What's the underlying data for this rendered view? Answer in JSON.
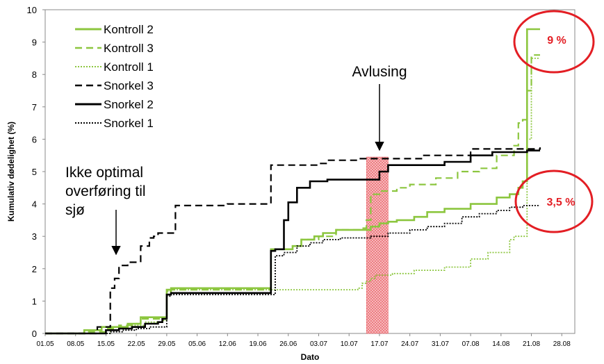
{
  "chart_data": {
    "type": "line",
    "title": "",
    "xlabel": "Dato",
    "ylabel": "Kumulativ dødelighet (%)",
    "ylim": [
      0,
      10
    ],
    "yticks": [
      "0",
      "1",
      "2",
      "3",
      "4",
      "5",
      "6",
      "7",
      "8",
      "9",
      "10"
    ],
    "x_tick_labels": [
      "01.05",
      "08.05",
      "15.05",
      "22.05",
      "29.05",
      "05.06",
      "12.06",
      "19.06",
      "26.06",
      "03.07",
      "10.07",
      "17.07",
      "24.07",
      "31.07",
      "07.08",
      "14.08",
      "21.08",
      "28.08"
    ],
    "x_range": [
      "01.05",
      "31.08"
    ],
    "grid": false,
    "legend_position": "top-left",
    "series": [
      {
        "name": "Kontroll 2",
        "color": "#8cc63f",
        "dash": "solid",
        "x": [
          "01.05",
          "08.05",
          "10.05",
          "14.05",
          "17.05",
          "20.05",
          "23.05",
          "27.05",
          "29.05",
          "30.05",
          "22.06",
          "27.06",
          "29.06",
          "02.07",
          "04.07",
          "07.07",
          "10.07",
          "13.07",
          "15.07",
          "17.07",
          "19.07",
          "21.07",
          "25.07",
          "28.07",
          "01.08",
          "07.08",
          "13.08",
          "16.08",
          "18.08",
          "19.08",
          "20.08",
          "23.08"
        ],
        "values": [
          0,
          0,
          0.1,
          0.2,
          0.2,
          0.3,
          0.5,
          0.5,
          1.35,
          1.4,
          2.6,
          2.7,
          2.9,
          3.0,
          3.1,
          3.2,
          3.2,
          3.2,
          3.3,
          3.4,
          3.45,
          3.5,
          3.6,
          3.75,
          3.85,
          4.0,
          4.2,
          4.3,
          4.5,
          4.7,
          9.4,
          9.4
        ]
      },
      {
        "name": "Kontroll 3",
        "color": "#8cc63f",
        "dash": "dash",
        "x": [
          "01.05",
          "08.05",
          "10.05",
          "15.05",
          "18.05",
          "21.05",
          "23.05",
          "27.05",
          "29.05",
          "30.05",
          "22.06",
          "27.06",
          "29.06",
          "03.07",
          "07.07",
          "13.07",
          "14.07",
          "15.07",
          "17.07",
          "21.07",
          "24.07",
          "30.07",
          "04.08",
          "09.08",
          "13.08",
          "17.08",
          "18.08",
          "19.08",
          "20.08",
          "21.08",
          "23.08"
        ],
        "values": [
          0,
          0,
          0.05,
          0.15,
          0.25,
          0.3,
          0.45,
          0.45,
          1.3,
          1.35,
          2.6,
          2.7,
          2.9,
          3.0,
          3.2,
          3.25,
          3.5,
          4.3,
          4.4,
          4.5,
          4.6,
          4.8,
          5.0,
          5.1,
          5.5,
          5.8,
          6.5,
          6.6,
          7.5,
          8.6,
          8.6
        ]
      },
      {
        "name": "Kontroll 1",
        "color": "#8cc63f",
        "dash": "dot",
        "x": [
          "01.05",
          "12.05",
          "16.05",
          "20.05",
          "24.05",
          "28.05",
          "29.05",
          "30.05",
          "22.06",
          "12.07",
          "13.07",
          "14.07",
          "15.07",
          "16.07",
          "20.07",
          "25.07",
          "01.08",
          "07.08",
          "11.08",
          "14.08",
          "16.08",
          "17.08",
          "19.08",
          "20.08",
          "21.08",
          "23.08"
        ],
        "values": [
          0,
          0,
          0.2,
          0.25,
          0.35,
          0.4,
          1.3,
          1.35,
          1.35,
          1.4,
          1.55,
          1.6,
          1.7,
          1.8,
          1.85,
          1.95,
          2.05,
          2.3,
          2.5,
          2.5,
          2.9,
          3.0,
          3.0,
          6.0,
          8.5,
          8.5
        ]
      },
      {
        "name": "Snorkel 3",
        "color": "#000000",
        "dash": "dash",
        "x": [
          "01.05",
          "08.05",
          "13.05",
          "15.05",
          "16.05",
          "17.05",
          "18.05",
          "20.05",
          "23.05",
          "25.05",
          "26.05",
          "27.05",
          "29.05",
          "31.05",
          "08.06",
          "12.06",
          "19.06",
          "21.06",
          "22.06",
          "03.07",
          "05.07",
          "12.07",
          "27.07",
          "07.08",
          "23.08"
        ],
        "values": [
          0,
          0,
          0.2,
          0.2,
          1.4,
          1.7,
          2.1,
          2.2,
          2.7,
          2.95,
          3.0,
          3.1,
          3.1,
          3.95,
          3.95,
          4.0,
          4.0,
          4.0,
          5.2,
          5.25,
          5.35,
          5.4,
          5.5,
          5.7,
          5.75
        ]
      },
      {
        "name": "Snorkel 2",
        "color": "#000000",
        "dash": "solid",
        "x": [
          "01.05",
          "08.05",
          "15.05",
          "18.05",
          "21.05",
          "24.05",
          "27.05",
          "28.05",
          "29.05",
          "30.05",
          "22.06",
          "23.06",
          "25.06",
          "26.06",
          "27.06",
          "28.06",
          "01.07",
          "05.07",
          "15.07",
          "17.07",
          "19.07",
          "25.07",
          "01.08",
          "07.08",
          "12.08",
          "16.08",
          "20.08",
          "23.08"
        ],
        "values": [
          0,
          0,
          0.1,
          0.15,
          0.2,
          0.3,
          0.35,
          0.45,
          1.2,
          1.25,
          2.55,
          2.6,
          3.5,
          4.05,
          4.05,
          4.5,
          4.7,
          4.75,
          4.75,
          5.0,
          5.2,
          5.2,
          5.3,
          5.5,
          5.6,
          5.6,
          5.65,
          5.65
        ]
      },
      {
        "name": "Snorkel 1",
        "color": "#000000",
        "dash": "dot",
        "x": [
          "01.05",
          "08.05",
          "16.05",
          "19.05",
          "22.05",
          "25.05",
          "29.05",
          "30.05",
          "22.06",
          "23.06",
          "25.06",
          "28.06",
          "01.07",
          "04.07",
          "08.07",
          "15.07",
          "19.07",
          "24.07",
          "28.07",
          "01.08",
          "05.08",
          "09.08",
          "13.08",
          "16.08",
          "19.08",
          "23.08"
        ],
        "values": [
          0,
          0,
          0.05,
          0.1,
          0.15,
          0.2,
          1.15,
          1.2,
          1.2,
          2.4,
          2.5,
          2.7,
          2.8,
          2.9,
          2.95,
          3.0,
          3.1,
          3.2,
          3.3,
          3.4,
          3.6,
          3.7,
          3.8,
          3.9,
          3.95,
          3.95
        ]
      }
    ],
    "annotations": [
      {
        "id": "avlusing",
        "text": "Avlusing",
        "arrow_to": {
          "x": "16.07",
          "y": 5.4
        }
      },
      {
        "id": "transfer",
        "lines": [
          "Ikke optimal",
          "overføring til",
          "sjø"
        ],
        "arrow_to": {
          "x": "18.05",
          "y": 2.1
        }
      },
      {
        "id": "pct-high",
        "text": "9 %",
        "color": "#e31e24",
        "at": {
          "x": "24.08",
          "y": 9.0
        }
      },
      {
        "id": "pct-low",
        "text": "3,5 %",
        "color": "#e31e24",
        "at": {
          "x": "24.08",
          "y": 3.5
        }
      }
    ],
    "shaded_period": {
      "from": "14.07",
      "to": "19.07",
      "color": "#f4a6a8"
    }
  }
}
